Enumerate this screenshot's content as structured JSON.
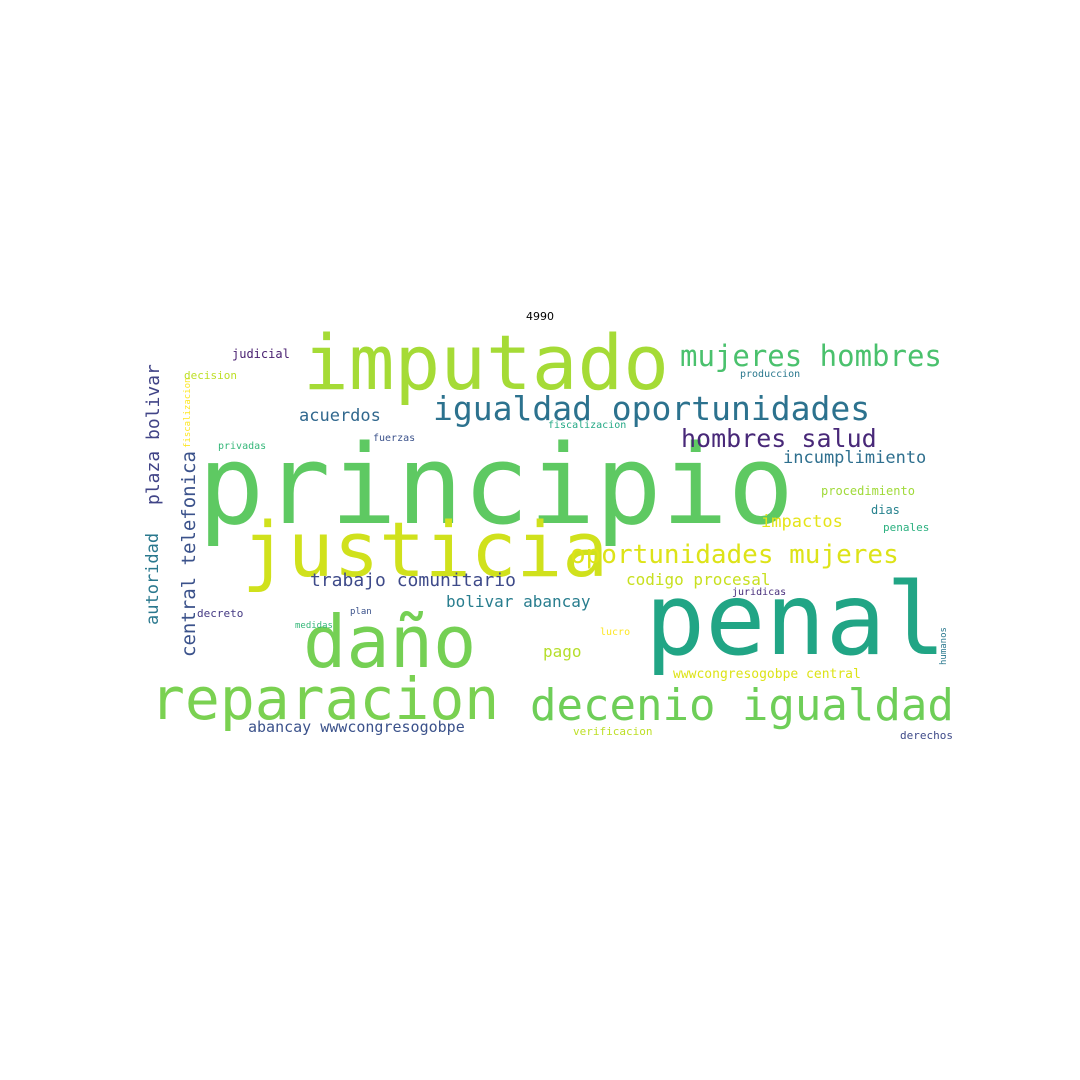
{
  "title": "4990",
  "words": [
    {
      "text": "principio",
      "color": "#5ec962"
    },
    {
      "text": "penal",
      "color": "#21a585"
    },
    {
      "text": "imputado",
      "color": "#a5db36"
    },
    {
      "text": "justicia",
      "color": "#d0e11c"
    },
    {
      "text": "daño",
      "color": "#75d054"
    },
    {
      "text": "reparacion",
      "color": "#7ad151"
    },
    {
      "text": "decenio igualdad",
      "color": "#6ece58"
    },
    {
      "text": "igualdad oportunidades",
      "color": "#2c728e"
    },
    {
      "text": "mujeres hombres",
      "color": "#4ac16d"
    },
    {
      "text": "oportunidades mujeres",
      "color": "#dde318"
    },
    {
      "text": "hombres salud",
      "color": "#482878"
    },
    {
      "text": "incumplimiento",
      "color": "#2e6f8e"
    },
    {
      "text": "trabajo comunitario",
      "color": "#3e4a89"
    },
    {
      "text": "codigo procesal",
      "color": "#c8e020"
    },
    {
      "text": "bolivar abancay",
      "color": "#287d8e"
    },
    {
      "text": "impactos",
      "color": "#e5e419"
    },
    {
      "text": "acuerdos",
      "color": "#31688e"
    },
    {
      "text": "pago",
      "color": "#b5de2b"
    },
    {
      "text": "wwwcongresogobpe central",
      "color": "#dde318"
    },
    {
      "text": "abancay wwwcongresogobpe",
      "color": "#3b528b"
    },
    {
      "text": "central telefonica",
      "color": "#3b528b"
    },
    {
      "text": "plaza bolivar",
      "color": "#414487"
    },
    {
      "text": "autoridad",
      "color": "#2a788e"
    },
    {
      "text": "judicial",
      "color": "#481f70"
    },
    {
      "text": "decision",
      "color": "#bddf26"
    },
    {
      "text": "fiscalizacion",
      "color": "#fde725"
    },
    {
      "text": "privadas",
      "color": "#35b779"
    },
    {
      "text": "fuerzas",
      "color": "#3b528b"
    },
    {
      "text": "fiscalizacion",
      "color": "#22a884"
    },
    {
      "text": "produccion",
      "color": "#2a788e"
    },
    {
      "text": "procedimiento",
      "color": "#a0da39"
    },
    {
      "text": "dias",
      "color": "#26828e"
    },
    {
      "text": "penales",
      "color": "#2ab07f"
    },
    {
      "text": "juridicas",
      "color": "#472d7b"
    },
    {
      "text": "decreto",
      "color": "#443983"
    },
    {
      "text": "medidas",
      "color": "#35b779"
    },
    {
      "text": "plan",
      "color": "#3b528b"
    },
    {
      "text": "lucro",
      "color": "#fde725"
    },
    {
      "text": "humanos",
      "color": "#2a788e"
    },
    {
      "text": "verificacion",
      "color": "#bddf26"
    },
    {
      "text": "derechos",
      "color": "#3e4a89"
    }
  ]
}
